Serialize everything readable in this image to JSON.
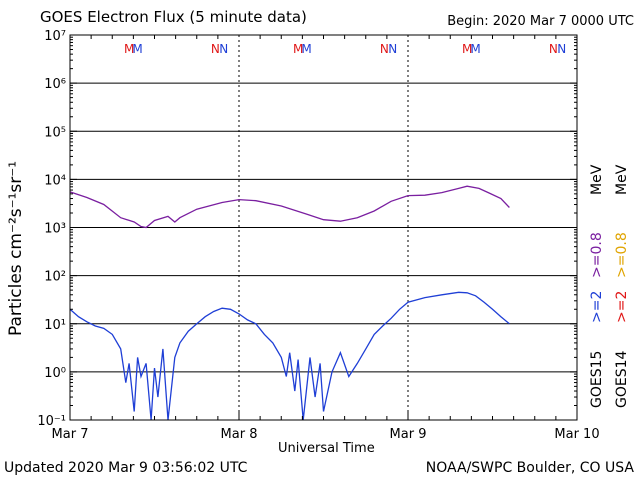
{
  "header": {
    "title": "GOES Electron Flux (5 minute data)",
    "begin": "Begin: 2020 Mar 7 0000 UTC"
  },
  "footer": {
    "updated": "Updated 2020 Mar  9 03:56:02 UTC",
    "credit": "NOAA/SWPC Boulder, CO USA"
  },
  "legend": {
    "goes15": "GOES15",
    "goes14": "GOES14",
    "ge2": ">=2",
    "ge08": ">=0.8",
    "mev": "MeV"
  },
  "colors": {
    "goes15_ge2": "#1f3fd6",
    "goes15_ge08": "#7a1fa0",
    "goes14_ge2": "#e01818",
    "goes14_ge08": "#e0a400",
    "marker_m": "#e01818",
    "marker_n": "#1f3fd6"
  },
  "chart_data": {
    "type": "line",
    "xlabel": "Universal Time",
    "ylabel": "Particles cm⁻²s⁻¹sr⁻¹",
    "yscale": "log",
    "ylim": [
      0.1,
      10000000
    ],
    "xlim_days": [
      0,
      3
    ],
    "x_ticks": [
      {
        "day": 0,
        "label": "Mar 7"
      },
      {
        "day": 1,
        "label": "Mar 8"
      },
      {
        "day": 2,
        "label": "Mar 9"
      },
      {
        "day": 3,
        "label": "Mar 10"
      }
    ],
    "y_ticks": [
      {
        "exp": -1,
        "label": "10⁻¹"
      },
      {
        "exp": 0,
        "label": "10⁰"
      },
      {
        "exp": 1,
        "label": "10¹"
      },
      {
        "exp": 2,
        "label": "10²"
      },
      {
        "exp": 3,
        "label": "10³"
      },
      {
        "exp": 4,
        "label": "10⁴"
      },
      {
        "exp": 5,
        "label": "10⁵"
      },
      {
        "exp": 6,
        "label": "10⁶"
      },
      {
        "exp": 7,
        "label": "10⁷"
      }
    ],
    "alert_threshold": 1000,
    "markers": [
      {
        "label": "M",
        "day": 0.35,
        "color": "m"
      },
      {
        "label": "M",
        "day": 0.4,
        "color": "n"
      },
      {
        "label": "N",
        "day": 0.86,
        "color": "m"
      },
      {
        "label": "N",
        "day": 0.91,
        "color": "n"
      },
      {
        "label": "M",
        "day": 1.35,
        "color": "m"
      },
      {
        "label": "M",
        "day": 1.4,
        "color": "n"
      },
      {
        "label": "N",
        "day": 1.86,
        "color": "m"
      },
      {
        "label": "N",
        "day": 1.91,
        "color": "n"
      },
      {
        "label": "M",
        "day": 2.35,
        "color": "m"
      },
      {
        "label": "M",
        "day": 2.4,
        "color": "n"
      },
      {
        "label": "N",
        "day": 2.86,
        "color": "m"
      },
      {
        "label": "N",
        "day": 2.91,
        "color": "n"
      }
    ],
    "series": [
      {
        "name": "GOES15 >=0.8 MeV",
        "color": "#7a1fa0",
        "points": [
          [
            0.0,
            5500
          ],
          [
            0.1,
            4200
          ],
          [
            0.2,
            3000
          ],
          [
            0.3,
            1600
          ],
          [
            0.38,
            1300
          ],
          [
            0.42,
            1050
          ],
          [
            0.45,
            1000
          ],
          [
            0.5,
            1400
          ],
          [
            0.58,
            1700
          ],
          [
            0.62,
            1300
          ],
          [
            0.65,
            1600
          ],
          [
            0.75,
            2400
          ],
          [
            0.9,
            3300
          ],
          [
            1.0,
            3800
          ],
          [
            1.1,
            3600
          ],
          [
            1.25,
            2800
          ],
          [
            1.4,
            1900
          ],
          [
            1.5,
            1450
          ],
          [
            1.6,
            1350
          ],
          [
            1.7,
            1600
          ],
          [
            1.8,
            2200
          ],
          [
            1.9,
            3500
          ],
          [
            2.0,
            4600
          ],
          [
            2.1,
            4700
          ],
          [
            2.2,
            5300
          ],
          [
            2.3,
            6500
          ],
          [
            2.35,
            7200
          ],
          [
            2.42,
            6500
          ],
          [
            2.48,
            5200
          ],
          [
            2.55,
            4000
          ],
          [
            2.6,
            2600
          ]
        ]
      },
      {
        "name": "GOES15 >=2 MeV",
        "color": "#1f3fd6",
        "points": [
          [
            0.0,
            20
          ],
          [
            0.05,
            14
          ],
          [
            0.1,
            11
          ],
          [
            0.15,
            9
          ],
          [
            0.2,
            8
          ],
          [
            0.25,
            6
          ],
          [
            0.3,
            3
          ],
          [
            0.33,
            0.6
          ],
          [
            0.35,
            1.5
          ],
          [
            0.38,
            0.15
          ],
          [
            0.4,
            2
          ],
          [
            0.42,
            0.8
          ],
          [
            0.45,
            1.5
          ],
          [
            0.48,
            0.1
          ],
          [
            0.5,
            1.2
          ],
          [
            0.52,
            0.3
          ],
          [
            0.55,
            3
          ],
          [
            0.58,
            0.1
          ],
          [
            0.62,
            2
          ],
          [
            0.65,
            4
          ],
          [
            0.7,
            7
          ],
          [
            0.75,
            10
          ],
          [
            0.8,
            14
          ],
          [
            0.85,
            18
          ],
          [
            0.9,
            21
          ],
          [
            0.95,
            20
          ],
          [
            1.0,
            16
          ],
          [
            1.05,
            12
          ],
          [
            1.1,
            10
          ],
          [
            1.15,
            6
          ],
          [
            1.2,
            4
          ],
          [
            1.25,
            2
          ],
          [
            1.28,
            0.8
          ],
          [
            1.3,
            2.5
          ],
          [
            1.33,
            0.4
          ],
          [
            1.35,
            1.8
          ],
          [
            1.38,
            0.1
          ],
          [
            1.42,
            2
          ],
          [
            1.45,
            0.3
          ],
          [
            1.48,
            1.5
          ],
          [
            1.5,
            0.15
          ],
          [
            1.55,
            1
          ],
          [
            1.6,
            2.5
          ],
          [
            1.65,
            0.8
          ],
          [
            1.7,
            1.5
          ],
          [
            1.75,
            3
          ],
          [
            1.8,
            6
          ],
          [
            1.85,
            9
          ],
          [
            1.9,
            13
          ],
          [
            1.95,
            20
          ],
          [
            2.0,
            28
          ],
          [
            2.1,
            35
          ],
          [
            2.2,
            40
          ],
          [
            2.3,
            45
          ],
          [
            2.35,
            44
          ],
          [
            2.4,
            38
          ],
          [
            2.45,
            28
          ],
          [
            2.5,
            20
          ],
          [
            2.55,
            14
          ],
          [
            2.6,
            10
          ]
        ]
      }
    ]
  }
}
